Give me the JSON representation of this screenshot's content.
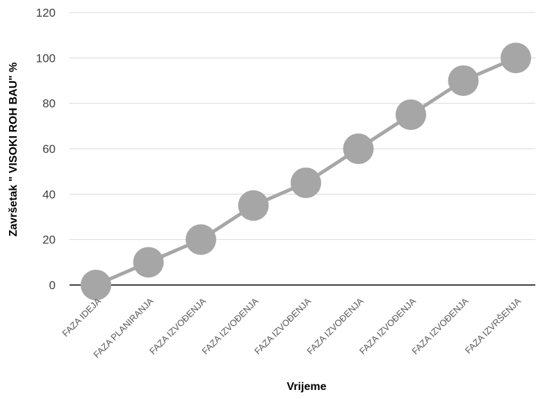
{
  "chart_data": {
    "type": "line",
    "title": "",
    "xlabel": "Vrijeme",
    "ylabel": "Završetak \" VISOKI ROH BAU\" %",
    "categories": [
      "FAZA IDEJA",
      "FAZA PLANIRANJA",
      "FAZA IZVOĐENJA",
      "FAZA IZVOĐENJA",
      "FAZA IZVOĐENJA",
      "FAZA IZVOĐENJA",
      "FAZA IZVOĐENJA",
      "FAZA IZVOĐENJA",
      "FAZA IZVRŠENJA"
    ],
    "series": [
      {
        "values": [
          0,
          10,
          20,
          35,
          45,
          60,
          75,
          90,
          100
        ]
      }
    ],
    "ylim": [
      0,
      120
    ],
    "yticks": [
      0,
      20,
      40,
      60,
      80,
      100,
      120
    ],
    "grid": true,
    "legend": "none",
    "colors": {
      "series": "#a6a6a6",
      "gridline": "#d9d9d9",
      "axis": "#404040"
    }
  }
}
